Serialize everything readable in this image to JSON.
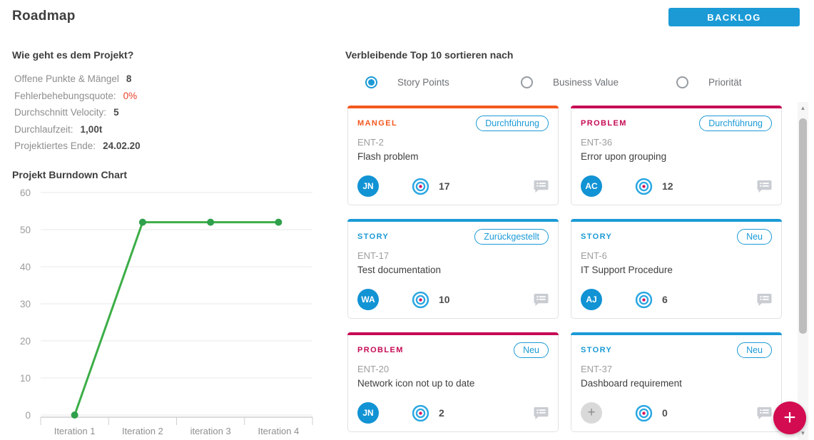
{
  "header": {
    "title": "Roadmap",
    "backlog_button": "BACKLOG"
  },
  "status_panel": {
    "heading": "Wie geht es dem Projekt?",
    "stats": [
      {
        "label": "Offene Punkte & Mängel",
        "value": "8",
        "highlight": false
      },
      {
        "label": "Fehlerbehebungsquote:",
        "value": "0%",
        "highlight": true
      },
      {
        "label": "Durchschnitt Velocity:",
        "value": "5",
        "highlight": false
      },
      {
        "label": "Durchlaufzeit:",
        "value": "1,00t",
        "highlight": false
      },
      {
        "label": "Projektiertes Ende:",
        "value": "24.02.20",
        "highlight": false
      }
    ]
  },
  "burndown": {
    "heading": "Projekt Burndown Chart"
  },
  "chart_data": {
    "type": "line",
    "title": "Projekt Burndown Chart",
    "categories": [
      "Iteration 1",
      "Iteration 2",
      "iteration 3",
      "Iteration 4"
    ],
    "values": [
      0,
      52,
      52,
      52
    ],
    "xlabel": "",
    "ylabel": "",
    "ylim": [
      0,
      60
    ],
    "yticks": [
      0,
      10,
      20,
      30,
      40,
      50,
      60
    ],
    "grid": true,
    "legend": false,
    "line_color": "#3cae47",
    "marker_color": "#2fa04b"
  },
  "top10": {
    "heading": "Verbleibende Top 10 sortieren nach",
    "sort_options": [
      {
        "label": "Story Points",
        "selected": true
      },
      {
        "label": "Business Value",
        "selected": false
      },
      {
        "label": "Priorität",
        "selected": false
      }
    ],
    "cards": [
      {
        "type": "MANGEL",
        "status": "Durchführung",
        "id": "ENT-2",
        "title": "Flash problem",
        "assignee": "JN",
        "points": "17"
      },
      {
        "type": "PROBLEM",
        "status": "Durchführung",
        "id": "ENT-36",
        "title": "Error upon grouping",
        "assignee": "AC",
        "points": "12"
      },
      {
        "type": "STORY",
        "status": "Zurückgestellt",
        "id": "ENT-17",
        "title": "Test documentation",
        "assignee": "WA",
        "points": "10"
      },
      {
        "type": "STORY",
        "status": "Neu",
        "id": "ENT-6",
        "title": "IT Support Procedure",
        "assignee": "AJ",
        "points": "6"
      },
      {
        "type": "PROBLEM",
        "status": "Neu",
        "id": "ENT-20",
        "title": "Network icon not up to date",
        "assignee": "JN",
        "points": "2"
      },
      {
        "type": "STORY",
        "status": "Neu",
        "id": "ENT-37",
        "title": "Dashboard requirement",
        "assignee": null,
        "points": "0"
      }
    ]
  },
  "fab": {
    "label": "+"
  },
  "icons": {
    "points": "bullseye-icon",
    "comments": "comment-icon",
    "unassigned_avatar": "plus-icon",
    "scroll_up": "triangle-up-icon",
    "scroll_down": "triangle-down-icon"
  },
  "colors": {
    "accent_blue": "#1b9ad6",
    "type_colors": {
      "MANGEL": "#f4581f",
      "PROBLEM": "#c60b55",
      "STORY": "#1b9ad6"
    },
    "fab_red": "#d30b50",
    "chart_line_green": "#3cae47",
    "stat_alert_red": "#e8432d"
  }
}
